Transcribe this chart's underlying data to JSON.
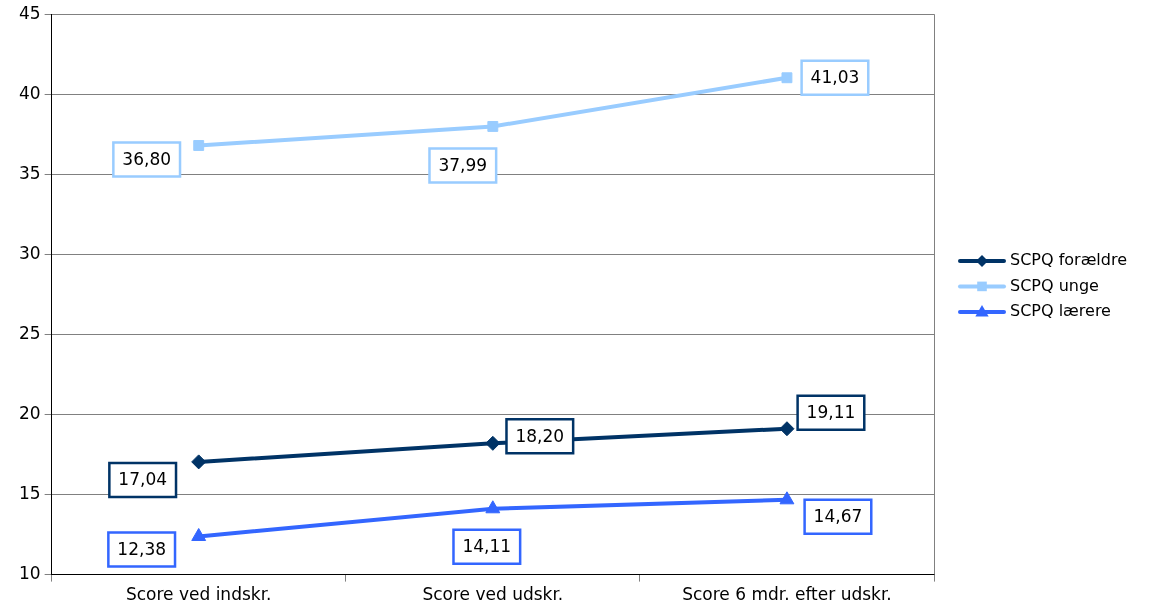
{
  "chart_data": {
    "type": "line",
    "categories": [
      "Score ved indskr.",
      "Score ved udskr.",
      "Score 6 mdr. efter udskr."
    ],
    "series": [
      {
        "name": "SCPQ forældre",
        "color": "#003366",
        "marker": "diamond",
        "values": [
          17.04,
          18.2,
          19.11
        ],
        "value_labels": [
          "17,04",
          "18,20",
          "19,11"
        ]
      },
      {
        "name": "SCPQ unge",
        "color": "#99ccff",
        "marker": "square",
        "values": [
          36.8,
          37.99,
          41.03
        ],
        "value_labels": [
          "36,80",
          "37,99",
          "41,03"
        ]
      },
      {
        "name": "SCPQ lærere",
        "color": "#3366ff",
        "marker": "triangle",
        "values": [
          12.38,
          14.11,
          14.67
        ],
        "value_labels": [
          "12,38",
          "14,11",
          "14,67"
        ]
      }
    ],
    "ylim": [
      10,
      45
    ],
    "yticks": [
      10,
      15,
      20,
      25,
      30,
      35,
      40,
      45
    ],
    "grid": "y",
    "legend": "right",
    "line_style": "solid"
  }
}
